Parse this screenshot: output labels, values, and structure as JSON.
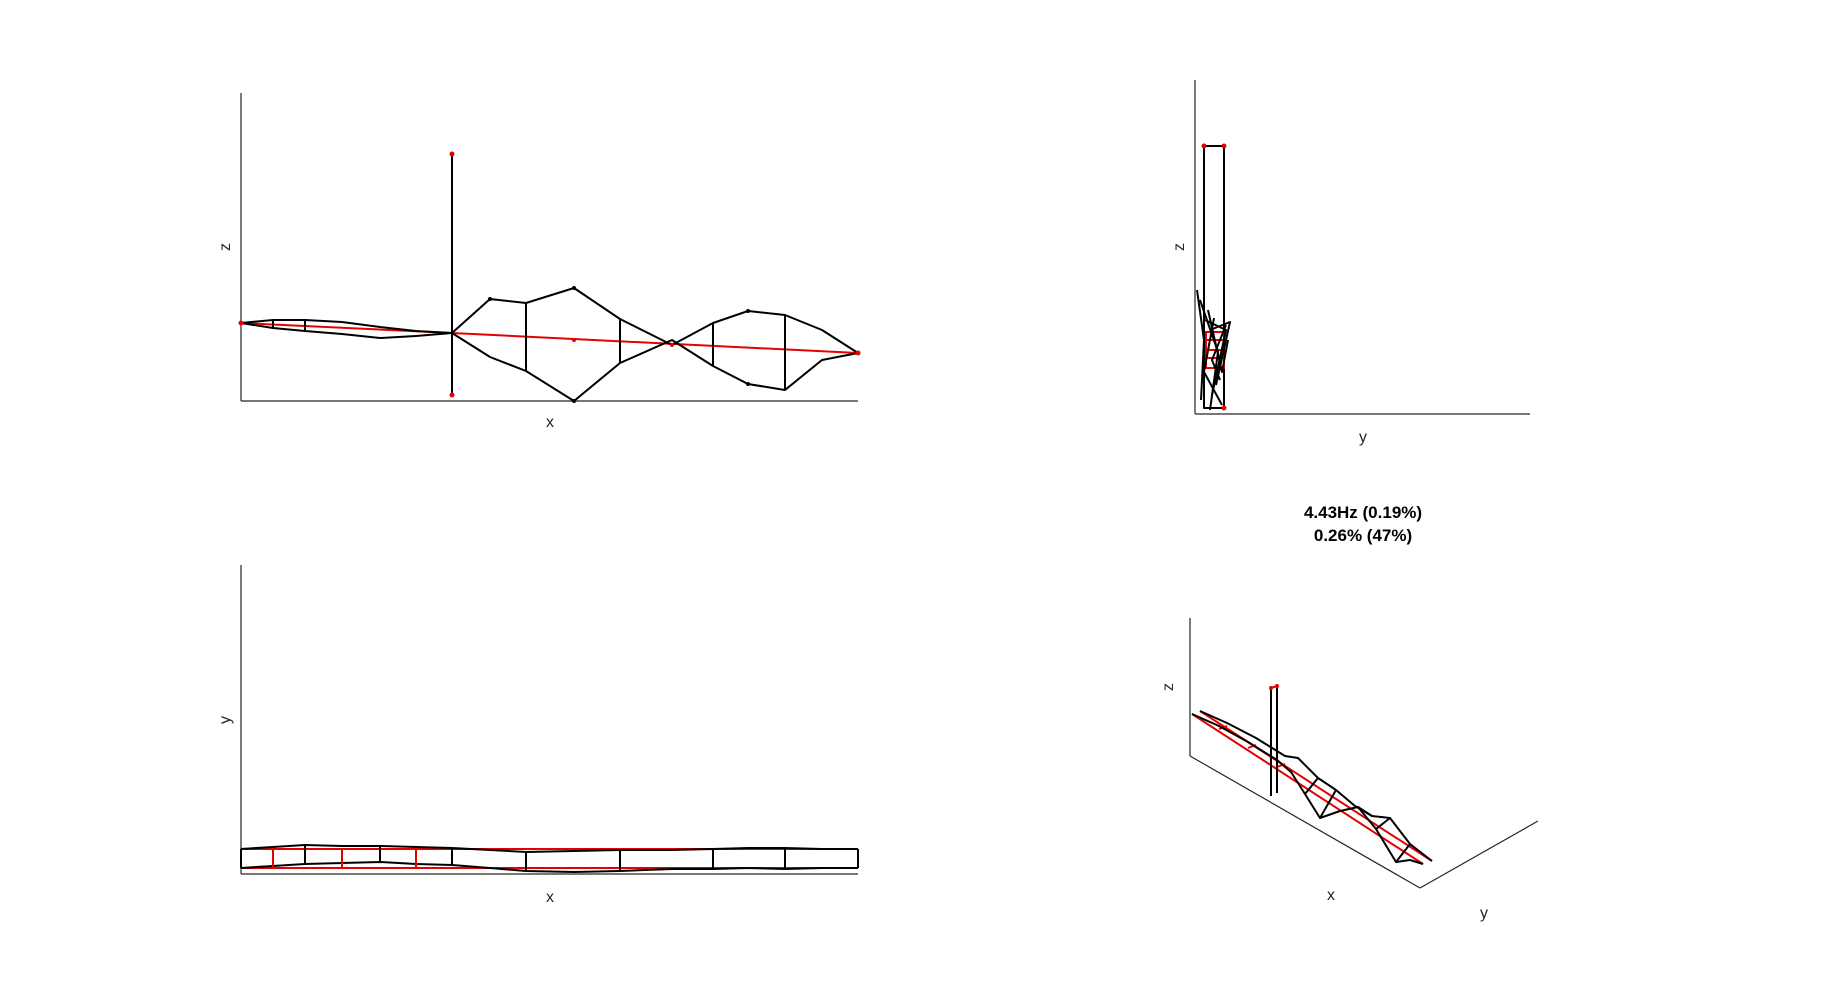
{
  "figure": {
    "title_line1": "4.43Hz (0.19%)",
    "title_line2": "0.26% (47%)"
  },
  "views": {
    "xz": {
      "xlabel": "x",
      "ylabel": "z"
    },
    "yz": {
      "xlabel": "y",
      "ylabel": "z"
    },
    "xy": {
      "xlabel": "x",
      "ylabel": "y"
    },
    "iso": {
      "xlabel": "x",
      "ylabel": "y",
      "zlabel": "z"
    }
  },
  "colors": {
    "deformed": "#000000",
    "undeformed": "#e60000",
    "axes": "#262626"
  }
}
